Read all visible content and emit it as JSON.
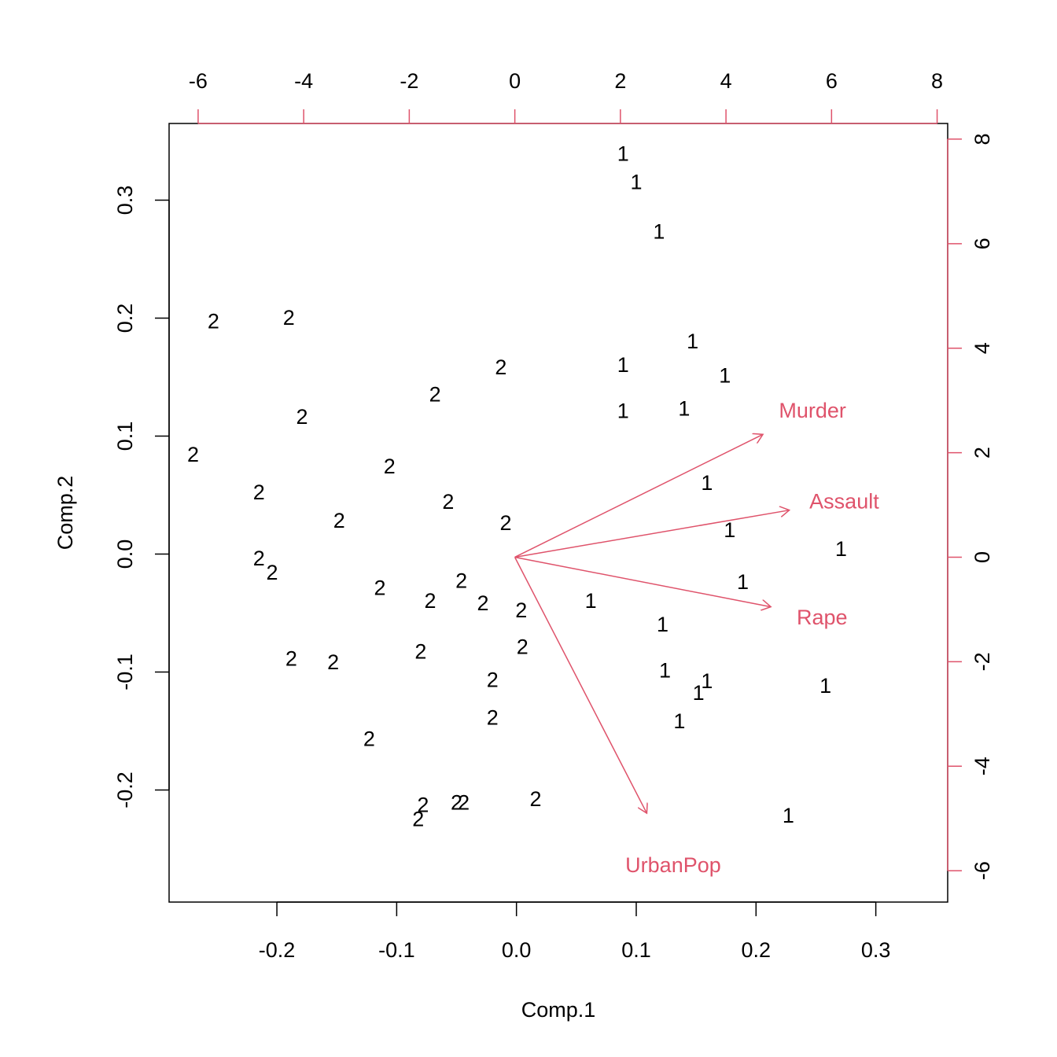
{
  "chart_data": {
    "type": "scatter",
    "subtype": "biplot",
    "xlabel": "Comp.1",
    "ylabel": "Comp.2",
    "xlim": [
      -0.29,
      0.36
    ],
    "ylim": [
      -0.295,
      0.365
    ],
    "x_ticks": [
      "-0.2",
      "-0.1",
      "0.0",
      "0.1",
      "0.2",
      "0.3"
    ],
    "y_ticks": [
      "-0.2",
      "-0.1",
      "0.0",
      "0.1",
      "0.2",
      "0.3"
    ],
    "top_ticks": [
      "-6",
      "-4",
      "-2",
      "0",
      "2",
      "4",
      "6",
      "8"
    ],
    "right_ticks": [
      "-6",
      "-4",
      "-2",
      "0",
      "2",
      "4",
      "6",
      "8"
    ],
    "arrow_scale_xlim": [
      -6.55,
      8.2
    ],
    "arrow_scale_ylim": [
      -6.6,
      8.3
    ],
    "loading_color": "#DF536B",
    "point_color": "#000000",
    "grid": false,
    "legend": "none",
    "points": [
      {
        "label": "1",
        "x": 0.089,
        "y": 0.34
      },
      {
        "label": "1",
        "x": 0.1,
        "y": 0.316
      },
      {
        "label": "1",
        "x": 0.119,
        "y": 0.274
      },
      {
        "label": "1",
        "x": 0.147,
        "y": 0.181
      },
      {
        "label": "1",
        "x": 0.089,
        "y": 0.161
      },
      {
        "label": "1",
        "x": 0.174,
        "y": 0.152
      },
      {
        "label": "1",
        "x": 0.089,
        "y": 0.122
      },
      {
        "label": "1",
        "x": 0.14,
        "y": 0.124
      },
      {
        "label": "1",
        "x": 0.159,
        "y": 0.061
      },
      {
        "label": "1",
        "x": 0.178,
        "y": 0.021
      },
      {
        "label": "1",
        "x": 0.271,
        "y": 0.005
      },
      {
        "label": "1",
        "x": 0.189,
        "y": -0.023
      },
      {
        "label": "1",
        "x": 0.062,
        "y": -0.039
      },
      {
        "label": "1",
        "x": 0.122,
        "y": -0.059
      },
      {
        "label": "1",
        "x": 0.124,
        "y": -0.098
      },
      {
        "label": "1",
        "x": 0.159,
        "y": -0.107
      },
      {
        "label": "1",
        "x": 0.152,
        "y": -0.117
      },
      {
        "label": "1",
        "x": 0.258,
        "y": -0.111
      },
      {
        "label": "1",
        "x": 0.136,
        "y": -0.141
      },
      {
        "label": "1",
        "x": 0.227,
        "y": -0.221
      },
      {
        "label": "2",
        "x": -0.253,
        "y": 0.198
      },
      {
        "label": "2",
        "x": -0.19,
        "y": 0.201
      },
      {
        "label": "2",
        "x": -0.013,
        "y": 0.159
      },
      {
        "label": "2",
        "x": -0.068,
        "y": 0.136
      },
      {
        "label": "2",
        "x": -0.179,
        "y": 0.117
      },
      {
        "label": "2",
        "x": -0.27,
        "y": 0.085
      },
      {
        "label": "2",
        "x": -0.106,
        "y": 0.075
      },
      {
        "label": "2",
        "x": -0.215,
        "y": 0.053
      },
      {
        "label": "2",
        "x": -0.057,
        "y": 0.045
      },
      {
        "label": "2",
        "x": -0.009,
        "y": 0.027
      },
      {
        "label": "2",
        "x": -0.148,
        "y": 0.029
      },
      {
        "label": "2",
        "x": -0.215,
        "y": -0.003
      },
      {
        "label": "2",
        "x": -0.204,
        "y": -0.015
      },
      {
        "label": "2",
        "x": -0.114,
        "y": -0.028
      },
      {
        "label": "2",
        "x": -0.046,
        "y": -0.022
      },
      {
        "label": "2",
        "x": -0.072,
        "y": -0.039
      },
      {
        "label": "2",
        "x": -0.028,
        "y": -0.041
      },
      {
        "label": "2",
        "x": 0.004,
        "y": -0.047
      },
      {
        "label": "2",
        "x": 0.005,
        "y": -0.078
      },
      {
        "label": "2",
        "x": -0.08,
        "y": -0.082
      },
      {
        "label": "2",
        "x": -0.188,
        "y": -0.088
      },
      {
        "label": "2",
        "x": -0.153,
        "y": -0.091
      },
      {
        "label": "2",
        "x": -0.02,
        "y": -0.106
      },
      {
        "label": "2",
        "x": -0.02,
        "y": -0.138
      },
      {
        "label": "2",
        "x": -0.123,
        "y": -0.156
      },
      {
        "label": "2",
        "x": 0.016,
        "y": -0.207
      },
      {
        "label": "2",
        "x": -0.078,
        "y": -0.212
      },
      {
        "label": "2",
        "x": -0.05,
        "y": -0.21
      },
      {
        "label": "2",
        "x": -0.044,
        "y": -0.21
      },
      {
        "label": "2",
        "x": -0.082,
        "y": -0.224
      }
    ],
    "loadings": [
      {
        "name": "Murder",
        "x": 4.7,
        "y": 2.35
      },
      {
        "name": "Assault",
        "x": 5.2,
        "y": 0.9
      },
      {
        "name": "Rape",
        "x": 4.85,
        "y": -0.95
      },
      {
        "name": "UrbanPop",
        "x": 2.5,
        "y": -4.9
      }
    ]
  }
}
